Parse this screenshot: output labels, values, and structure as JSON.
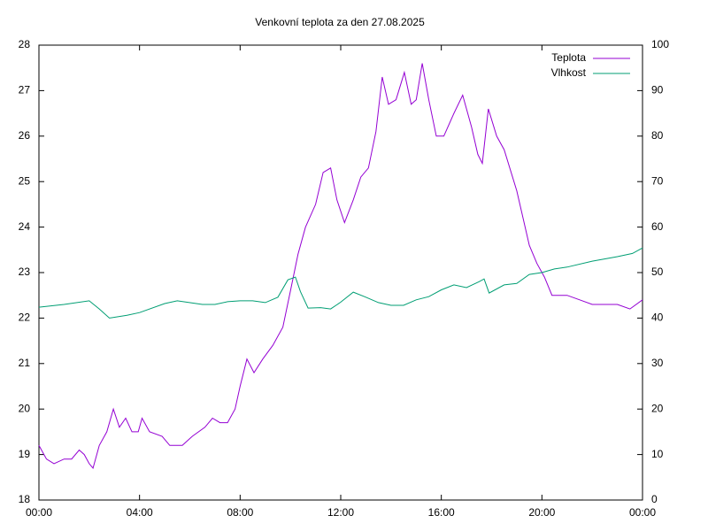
{
  "chart_data": {
    "type": "line",
    "title": "Venkovní teplota za den 27.08.2025",
    "xlim": [
      0,
      24
    ],
    "xticks": [
      {
        "value": 0,
        "label": "00:00"
      },
      {
        "value": 4,
        "label": "04:00"
      },
      {
        "value": 8,
        "label": "08:00"
      },
      {
        "value": 12,
        "label": "12:00"
      },
      {
        "value": 16,
        "label": "16:00"
      },
      {
        "value": 20,
        "label": "20:00"
      },
      {
        "value": 24,
        "label": "00:00"
      }
    ],
    "ylim": [
      18,
      28
    ],
    "yticks": [
      18,
      19,
      20,
      21,
      22,
      23,
      24,
      25,
      26,
      27,
      28
    ],
    "y2lim": [
      0,
      100
    ],
    "y2ticks": [
      0,
      10,
      20,
      30,
      40,
      50,
      60,
      70,
      80,
      90,
      100
    ],
    "legend": "top-right",
    "series": [
      {
        "name": "Teplota",
        "color": "#9400d3",
        "x": [
          0,
          0.3,
          0.6,
          1,
          1.3,
          1.6,
          1.8,
          2.0,
          2.15,
          2.4,
          2.7,
          2.96,
          3.2,
          3.45,
          3.7,
          3.95,
          4.1,
          4.4,
          4.9,
          5.2,
          5.7,
          6.1,
          6.6,
          6.9,
          7.2,
          7.5,
          7.8,
          8.0,
          8.27,
          8.55,
          8.9,
          9.3,
          9.7,
          10.0,
          10.3,
          10.6,
          11.0,
          11.3,
          11.6,
          11.85,
          12.15,
          12.5,
          12.8,
          13.1,
          13.4,
          13.65,
          13.9,
          14.2,
          14.53,
          14.8,
          15.0,
          15.24,
          15.5,
          15.8,
          16.1,
          16.5,
          16.85,
          17.2,
          17.45,
          17.63,
          17.87,
          18.2,
          18.5,
          19.0,
          19.5,
          19.8,
          20.1,
          20.4,
          21.0,
          21.5,
          22.0,
          22.5,
          23.0,
          23.5,
          24
        ],
        "values": [
          19.2,
          18.9,
          18.8,
          18.9,
          18.9,
          19.1,
          19.0,
          18.8,
          18.7,
          19.2,
          19.5,
          20.0,
          19.6,
          19.8,
          19.5,
          19.5,
          19.8,
          19.5,
          19.4,
          19.2,
          19.2,
          19.4,
          19.6,
          19.8,
          19.7,
          19.7,
          20.0,
          20.5,
          21.1,
          20.8,
          21.1,
          21.4,
          21.8,
          22.6,
          23.4,
          24.0,
          24.5,
          25.2,
          25.3,
          24.6,
          24.1,
          24.6,
          25.1,
          25.3,
          26.1,
          27.3,
          26.7,
          26.8,
          27.4,
          26.7,
          26.8,
          27.6,
          26.8,
          26.0,
          26.0,
          26.5,
          26.9,
          26.2,
          25.6,
          25.4,
          26.6,
          26.0,
          25.7,
          24.8,
          23.6,
          23.2,
          22.9,
          22.5,
          22.5,
          22.4,
          22.3,
          22.3,
          22.3,
          22.2,
          22.4
        ]
      },
      {
        "name": "Vlhkost",
        "color": "#009e73",
        "axis": "y2",
        "x": [
          0,
          1,
          2,
          2.4,
          2.8,
          3.5,
          4,
          5,
          5.5,
          6.5,
          7,
          7.5,
          8,
          8.5,
          9.0,
          9.5,
          9.9,
          10.2,
          10.4,
          10.7,
          11.2,
          11.6,
          12.0,
          12.5,
          13.0,
          13.5,
          14.0,
          14.5,
          15.0,
          15.5,
          16.0,
          16.5,
          17.0,
          17.5,
          17.7,
          17.9,
          18.5,
          19,
          19.5,
          20,
          20.5,
          21,
          22,
          23,
          23.6,
          24
        ],
        "values": [
          42.4,
          43,
          43.8,
          42,
          40,
          40.6,
          41.2,
          43.2,
          43.8,
          43,
          43,
          43.6,
          43.8,
          43.8,
          43.4,
          44.6,
          48.4,
          49,
          45.8,
          42.2,
          42.3,
          42,
          43.5,
          45.7,
          44.6,
          43.4,
          42.8,
          42.8,
          44.0,
          44.7,
          46.2,
          47.3,
          46.7,
          48,
          48.6,
          45.5,
          47.3,
          47.6,
          49.6,
          50,
          50.8,
          51.2,
          52.5,
          53.5,
          54.2,
          55.4
        ]
      }
    ]
  }
}
